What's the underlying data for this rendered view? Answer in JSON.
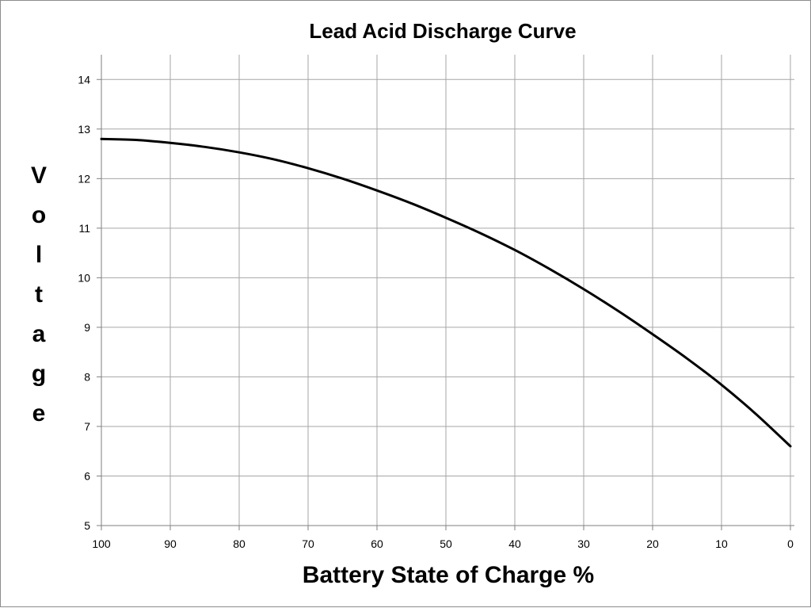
{
  "chart_data": {
    "type": "line",
    "title": "Lead Acid Discharge Curve",
    "xlabel": "Battery State of Charge %",
    "ylabel": "Voltage",
    "xlim": [
      100,
      0
    ],
    "ylim": [
      5,
      14.5
    ],
    "x_reversed": true,
    "x_ticks": [
      100,
      90,
      80,
      70,
      60,
      50,
      40,
      30,
      20,
      10,
      0
    ],
    "y_ticks": [
      5,
      6,
      7,
      8,
      9,
      10,
      11,
      12,
      13,
      14
    ],
    "grid": true,
    "legend": "none",
    "series": [
      {
        "color": "#000000",
        "x": [
          100,
          95,
          90,
          85,
          80,
          75,
          70,
          65,
          60,
          55,
          50,
          45,
          40,
          35,
          30,
          25,
          20,
          15,
          10,
          5,
          0
        ],
        "y": [
          12.8,
          12.78,
          12.72,
          12.64,
          12.53,
          12.39,
          12.21,
          12.0,
          11.76,
          11.5,
          11.21,
          10.9,
          10.56,
          10.18,
          9.77,
          9.33,
          8.86,
          8.37,
          7.84,
          7.25,
          6.6
        ]
      }
    ]
  }
}
